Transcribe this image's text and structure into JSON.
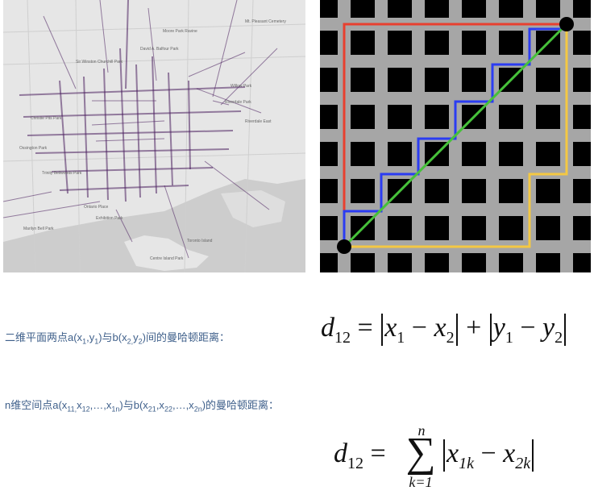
{
  "map": {
    "labels": [
      "Moore Park Ravine",
      "David A. Balfour Park",
      "Mt. Pleasant Cemetery",
      "Sir Winston Churchill Park",
      "Willow Park",
      "Christie Pits Park",
      "Ossington Park",
      "Trinity Bellwoods Park",
      "Riverdale Park",
      "Marilyn Bell Park",
      "Exhibition Park",
      "Centre Island Park",
      "Toronto Island",
      "Ontario Place",
      "Riverdale East"
    ]
  },
  "grid": {
    "path_colors": {
      "manhattan_stair": "#2b3cf2",
      "euclidean": "#46c13a",
      "manhattan_top": "#e8402f",
      "manhattan_bottom": "#f4c843"
    }
  },
  "text": {
    "desc1_pre": "二维平面两点a(x",
    "desc1_sub1": "1",
    "desc1_mid1": ",y",
    "desc1_sub2": "1",
    "desc1_mid2": ")与b(x",
    "desc1_sub3": "2,",
    "desc1_mid3": "y",
    "desc1_sub4": "2",
    "desc1_post": ")间的曼哈顿距离：",
    "desc2_pre": "n维空间点a(x",
    "desc2_s1": "11,",
    "desc2_m1": "x",
    "desc2_s2": "12",
    "desc2_m2": ",…,x",
    "desc2_s3": "1n",
    "desc2_m3": ")与b(x",
    "desc2_s4": "21",
    "desc2_m4": ",x",
    "desc2_s5": "22",
    "desc2_m5": ",…,x",
    "desc2_s6": "2n",
    "desc2_post": ")的曼哈顿距离："
  },
  "formula1": {
    "d": "d",
    "sub12": "12",
    "eq": "=",
    "x": "x",
    "one": "1",
    "minus": "−",
    "two": "2",
    "plus": "+",
    "y": "y"
  },
  "formula2": {
    "d": "d",
    "sub12": "12",
    "eq": "=",
    "sigma": "∑",
    "upper": "n",
    "lower": "k=1",
    "x": "x",
    "sub1k": "1k",
    "minus": "−",
    "sub2k": "2k"
  }
}
